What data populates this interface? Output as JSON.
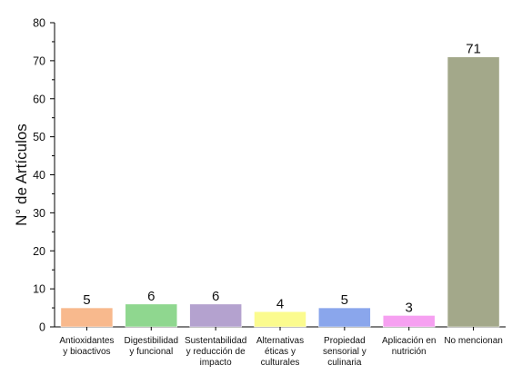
{
  "chart_data": {
    "type": "bar",
    "title": "",
    "xlabel": "",
    "ylabel": "N° de Artículos",
    "ylim": [
      0,
      80
    ],
    "yticks": [
      0,
      10,
      20,
      30,
      40,
      50,
      60,
      70,
      80
    ],
    "grid": false,
    "categories": [
      [
        "Antioxidantes",
        "y bioactivos"
      ],
      [
        "Digestibilidad",
        "y funcional"
      ],
      [
        "Sustentabilidad",
        "y reducción de",
        "impacto"
      ],
      [
        "Alternativas",
        "éticas y",
        "culturales"
      ],
      [
        "Propiedad",
        "sensorial y",
        "culinaria"
      ],
      [
        "Aplicación en",
        "nutrición"
      ],
      [
        "No mencionan"
      ]
    ],
    "values": [
      5,
      6,
      6,
      4,
      5,
      3,
      71
    ],
    "data_labels": [
      "5",
      "6",
      "6",
      "4",
      "5",
      "3",
      "71"
    ],
    "colors": [
      "#f8b98d",
      "#8fd78f",
      "#b4a2cf",
      "#fbfb8e",
      "#8aa6ec",
      "#f6a0f1",
      "#a3a88a"
    ]
  }
}
